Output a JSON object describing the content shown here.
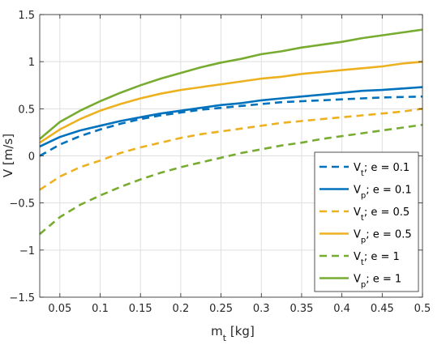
{
  "chart_data": {
    "type": "line",
    "xlabel": {
      "base": "m",
      "sub": "t",
      "rest": " [kg]"
    },
    "ylabel": "V [m/s]",
    "xlim": [
      0.025,
      0.5
    ],
    "ylim": [
      -1.5,
      1.5
    ],
    "xticks": [
      0.05,
      0.1,
      0.15,
      0.2,
      0.25,
      0.3,
      0.35,
      0.4,
      0.45,
      0.5
    ],
    "xtick_labels": [
      "0.05",
      "0.1",
      "0.15",
      "0.2",
      "0.25",
      "0.3",
      "0.35",
      "0.4",
      "0.45",
      "0.5"
    ],
    "yticks": [
      -1.5,
      -1,
      -0.5,
      0,
      0.5,
      1,
      1.5
    ],
    "ytick_labels": [
      "−1.5",
      "−1",
      "−0.5",
      "0",
      "0.5",
      "1",
      "1.5"
    ],
    "grid": true,
    "legend_position": "bottom-right",
    "x": [
      0.025,
      0.05,
      0.075,
      0.1,
      0.125,
      0.15,
      0.175,
      0.2,
      0.225,
      0.25,
      0.275,
      0.3,
      0.325,
      0.35,
      0.375,
      0.4,
      0.425,
      0.45,
      0.475,
      0.5
    ],
    "series": [
      {
        "name": "V_t; e = 0.1",
        "label_base": "V",
        "label_sub": "t",
        "label_rest": "; e = 0.1",
        "color": "#0072BD",
        "dash": true,
        "values": [
          0.0,
          0.12,
          0.21,
          0.28,
          0.34,
          0.39,
          0.43,
          0.46,
          0.49,
          0.51,
          0.53,
          0.55,
          0.57,
          0.58,
          0.59,
          0.6,
          0.61,
          0.62,
          0.625,
          0.63
        ]
      },
      {
        "name": "V_p; e = 0.1",
        "label_base": "V",
        "label_sub": "p",
        "label_rest": "; e = 0.1",
        "color": "#0072BD",
        "dash": false,
        "values": [
          0.1,
          0.2,
          0.27,
          0.32,
          0.37,
          0.41,
          0.45,
          0.48,
          0.51,
          0.54,
          0.56,
          0.59,
          0.61,
          0.63,
          0.65,
          0.67,
          0.69,
          0.7,
          0.715,
          0.73
        ]
      },
      {
        "name": "V_t; e = 0.5",
        "label_base": "V",
        "label_sub": "t",
        "label_rest": "; e = 0.5",
        "color": "#EDB120",
        "dash": true,
        "values": [
          -0.36,
          -0.22,
          -0.12,
          -0.05,
          0.03,
          0.09,
          0.14,
          0.19,
          0.23,
          0.26,
          0.29,
          0.32,
          0.35,
          0.37,
          0.39,
          0.41,
          0.43,
          0.45,
          0.47,
          0.5
        ]
      },
      {
        "name": "V_p; e = 0.5",
        "label_base": "V",
        "label_sub": "p",
        "label_rest": "; e = 0.5",
        "color": "#EDB120",
        "dash": false,
        "values": [
          0.14,
          0.28,
          0.39,
          0.48,
          0.55,
          0.61,
          0.66,
          0.7,
          0.73,
          0.76,
          0.79,
          0.82,
          0.84,
          0.87,
          0.89,
          0.91,
          0.93,
          0.95,
          0.98,
          1.0
        ]
      },
      {
        "name": "V_t; e = 1",
        "label_base": "V",
        "label_sub": "t",
        "label_rest": "; e = 1",
        "color": "#77AC30",
        "dash": true,
        "values": [
          -0.83,
          -0.65,
          -0.52,
          -0.42,
          -0.33,
          -0.25,
          -0.18,
          -0.12,
          -0.07,
          -0.02,
          0.03,
          0.07,
          0.11,
          0.14,
          0.18,
          0.21,
          0.24,
          0.27,
          0.3,
          0.33
        ]
      },
      {
        "name": "V_p; e = 1",
        "label_base": "V",
        "label_sub": "p",
        "label_rest": "; e = 1",
        "color": "#77AC30",
        "dash": false,
        "values": [
          0.18,
          0.36,
          0.48,
          0.58,
          0.67,
          0.75,
          0.82,
          0.88,
          0.94,
          0.99,
          1.03,
          1.08,
          1.11,
          1.15,
          1.18,
          1.21,
          1.25,
          1.28,
          1.31,
          1.34
        ]
      }
    ]
  }
}
